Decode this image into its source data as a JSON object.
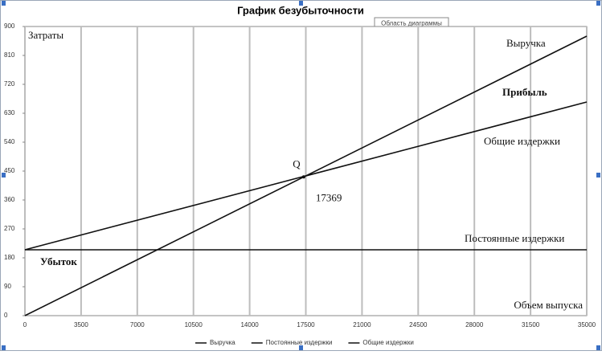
{
  "chart_data": {
    "type": "line",
    "title": "График безубыточности",
    "tooltip": "Область диаграммы",
    "x": [
      0,
      35000
    ],
    "series": [
      {
        "name": "Выручка",
        "color": "#111111",
        "values": [
          0,
          870
        ]
      },
      {
        "name": "Постоянные издержки",
        "color": "#111111",
        "values": [
          205,
          205
        ]
      },
      {
        "name": "Общие издержки",
        "color": "#111111",
        "values": [
          205,
          665
        ]
      }
    ],
    "xlim": [
      0,
      35000
    ],
    "xticks": [
      0,
      3500,
      7000,
      10500,
      14000,
      17500,
      21000,
      24500,
      28000,
      31500,
      35000
    ],
    "ylim": [
      0,
      900
    ],
    "yticks": [
      0,
      90,
      180,
      270,
      360,
      450,
      540,
      630,
      720,
      810,
      900
    ],
    "grid": true,
    "y_label": "Затраты",
    "x_label": "Объем выпуска",
    "annotations": [
      "Выручка",
      "Прибыль",
      "Общие издержки",
      "Постоянные издержки",
      "Убыток"
    ],
    "break_even": {
      "label": "Q",
      "value": 17369
    },
    "legend": "bottom"
  }
}
